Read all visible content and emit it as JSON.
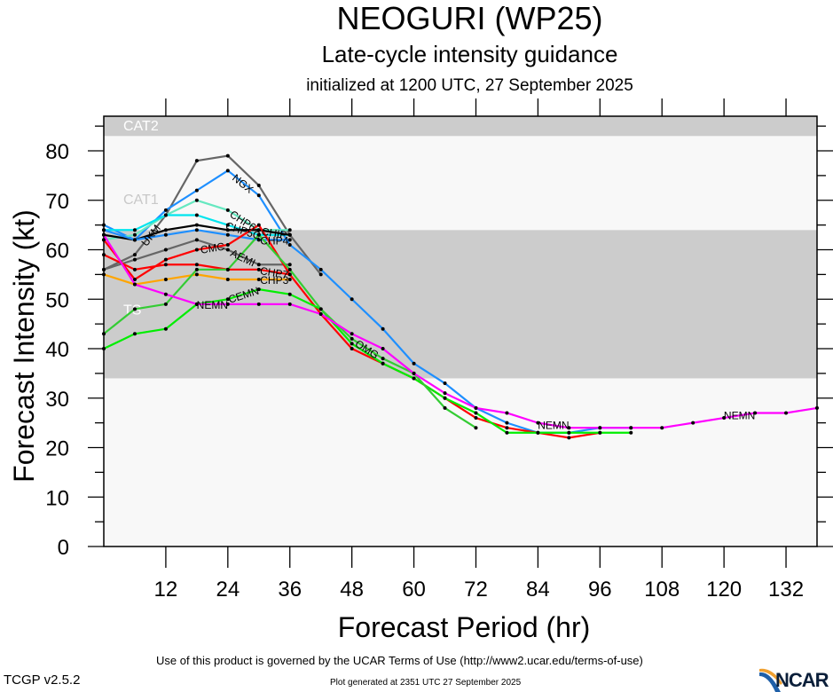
{
  "header": {
    "title": "NEOGURI (WP25)",
    "subtitle": "Late-cycle intensity guidance",
    "init": "initialized at 1200 UTC, 27 September 2025"
  },
  "footer": {
    "terms": "Use of this product is governed by the UCAR Terms of Use (http://www2.ucar.edu/terms-of-use)",
    "generated": "Plot generated at 2351 UTC   27 September 2025",
    "version": "TCGP v2.5.2",
    "logo": "NCAR"
  },
  "chart_data": {
    "type": "line",
    "title": "NEOGURI (WP25)",
    "xlabel": "Forecast Period (hr)",
    "ylabel": "Forecast Intensity (kt)",
    "xlim": [
      0,
      138
    ],
    "ylim": [
      0,
      87
    ],
    "xticks": [
      12,
      24,
      36,
      48,
      60,
      72,
      84,
      96,
      108,
      120,
      132
    ],
    "yticks": [
      0,
      10,
      20,
      30,
      40,
      50,
      60,
      70,
      80
    ],
    "bands": [
      {
        "name": "TS",
        "from": 34,
        "to": 64,
        "color": "#cccccc",
        "label_color": "#ffffff"
      },
      {
        "name": "CAT1",
        "from": 64,
        "to": 83,
        "color": "#f8f8f8",
        "label_color": "#c8c8c8"
      },
      {
        "name": "CAT2",
        "from": 83,
        "to": 96,
        "color": "#cccccc",
        "label_color": "#ffffff"
      }
    ],
    "background": "#f8f8f8",
    "series": [
      {
        "name": "UKM",
        "color": "#666666",
        "x": [
          0,
          6,
          12,
          18,
          24,
          30,
          36,
          42
        ],
        "y": [
          56,
          59,
          67,
          78,
          79,
          73,
          63,
          55
        ],
        "label_at": 1
      },
      {
        "name": "NGX",
        "color": "#1e8fff",
        "x": [
          0,
          6,
          12,
          18,
          24,
          30,
          36,
          42,
          48,
          54,
          60,
          66,
          72,
          78,
          84,
          90,
          96,
          102
        ],
        "y": [
          65,
          62,
          68,
          72,
          76,
          71,
          61,
          56,
          50,
          44,
          37,
          33,
          28,
          25,
          23,
          23,
          24,
          24
        ],
        "label_at": 4
      },
      {
        "name": "CHP6",
        "color": "#66e8c0",
        "x": [
          0,
          6,
          12,
          18,
          24,
          30,
          36
        ],
        "y": [
          62,
          63,
          67,
          70,
          68,
          64,
          64
        ],
        "label_at": 4
      },
      {
        "name": "CHP5C",
        "color": "#00e5ee",
        "x": [
          0,
          6,
          12,
          18,
          24,
          30,
          36
        ],
        "y": [
          64,
          64,
          67,
          67,
          65,
          63,
          63
        ],
        "label_at": 4
      },
      {
        "name": "CHIP",
        "color": "#000000",
        "x": [
          0,
          6,
          12,
          18,
          24,
          30,
          36
        ],
        "y": [
          63,
          62,
          64,
          65,
          64,
          64,
          63
        ],
        "label_at": 5
      },
      {
        "name": "CHP4",
        "color": "#1e8fff",
        "x": [
          0,
          6,
          12,
          18,
          24,
          30,
          36
        ],
        "y": [
          64,
          62,
          63,
          64,
          63,
          62,
          62
        ],
        "label_at": 5
      },
      {
        "name": "AEMI",
        "color": "#666666",
        "x": [
          0,
          6,
          12,
          18,
          24,
          30,
          36
        ],
        "y": [
          56,
          58,
          60,
          62,
          60,
          57,
          57
        ],
        "label_at": 4
      },
      {
        "name": "CMC",
        "color": "#ff0000",
        "x": [
          0,
          6,
          12,
          18,
          24,
          30,
          36,
          42,
          48,
          54,
          60,
          66,
          72,
          78,
          84,
          90,
          96
        ],
        "y": [
          62,
          54,
          58,
          60,
          61,
          65,
          55,
          47,
          40,
          37,
          34,
          30,
          26,
          24,
          23,
          22,
          23
        ],
        "label_at": 3
      },
      {
        "name": "CHP7",
        "color": "#ff0000",
        "x": [
          0,
          6,
          12,
          18,
          24,
          30,
          36
        ],
        "y": [
          59,
          56,
          57,
          57,
          56,
          56,
          55
        ],
        "label_at": 5
      },
      {
        "name": "CHP3",
        "color": "#ffa500",
        "x": [
          0,
          6,
          12,
          18,
          24,
          30,
          36
        ],
        "y": [
          55,
          53,
          54,
          55,
          54,
          54,
          54
        ],
        "label_at": 5
      },
      {
        "name": "CEMN",
        "color": "#00ee00",
        "x": [
          0,
          6,
          12,
          18,
          24,
          30,
          36,
          42,
          48,
          54,
          60,
          66,
          72,
          78,
          84,
          90,
          96,
          102
        ],
        "y": [
          40,
          43,
          44,
          49,
          50,
          52,
          51,
          48,
          41,
          37,
          34,
          30,
          27,
          23,
          23,
          23,
          23,
          23
        ],
        "label_at": 4
      },
      {
        "name": "OMG",
        "color": "#33cc33",
        "x": [
          0,
          6,
          12,
          18,
          24,
          30,
          36,
          42,
          48,
          54,
          60,
          66,
          72
        ],
        "y": [
          43,
          48,
          49,
          56,
          56,
          63,
          56,
          48,
          42,
          38,
          35,
          28,
          24
        ],
        "label_at": 8
      },
      {
        "name": "NEMN",
        "color": "#ff00ff",
        "x": [
          0,
          6,
          12,
          18,
          24,
          30,
          36,
          42,
          48,
          54,
          60,
          66,
          72,
          78,
          84,
          90,
          96,
          102,
          108,
          114,
          120,
          126,
          132,
          138
        ],
        "y": [
          63,
          53,
          51,
          49,
          49,
          49,
          49,
          47,
          43,
          40,
          35,
          31,
          28,
          27,
          25,
          24,
          24,
          24,
          24,
          25,
          26,
          27,
          27,
          28
        ],
        "label_at": 3
      }
    ],
    "legend": "inline labels on lines",
    "grid": false
  }
}
